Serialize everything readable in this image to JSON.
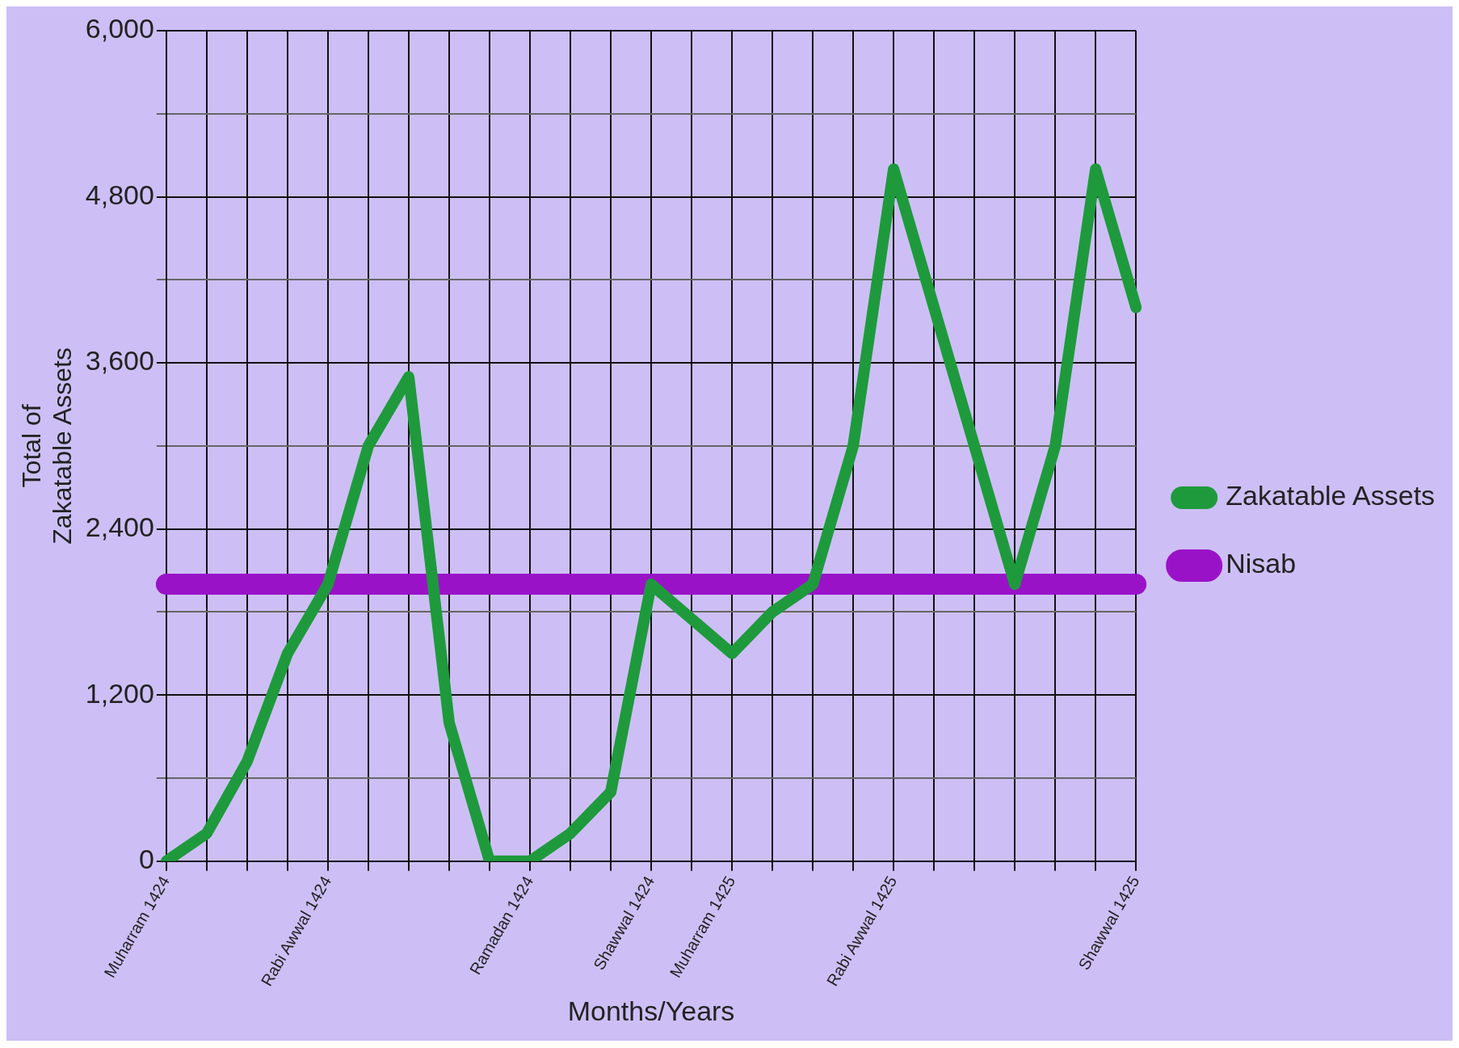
{
  "chart_data": {
    "type": "line",
    "xlabel": "Months/Years",
    "ylabel": "Total of Zakatable Assets",
    "categories": [
      "Muharram 1424",
      null,
      null,
      null,
      "Rabi Awwal 1424",
      null,
      null,
      null,
      null,
      "Ramadan 1424",
      null,
      null,
      "Shawwal 1424",
      null,
      "Muharram 1425",
      null,
      null,
      null,
      "Rabi Awwal 1425",
      null,
      null,
      null,
      null,
      null,
      "Shawwal 1425"
    ],
    "series": [
      {
        "name": "Zakatable Assets",
        "color": "#1e9a3c",
        "values": [
          0,
          200,
          720,
          1500,
          2000,
          3000,
          3500,
          1000,
          0,
          0,
          200,
          500,
          2000,
          1750,
          1500,
          1800,
          2000,
          3000,
          5000,
          4000,
          3000,
          2000,
          3000,
          5000,
          4000
        ]
      },
      {
        "name": "Nisab",
        "color": "#9a12c8",
        "values": [
          2000,
          2000,
          2000,
          2000,
          2000,
          2000,
          2000,
          2000,
          2000,
          2000,
          2000,
          2000,
          2000,
          2000,
          2000,
          2000,
          2000,
          2000,
          2000,
          2000,
          2000,
          2000,
          2000,
          2000,
          2000
        ]
      }
    ],
    "ylim": [
      0,
      6000
    ],
    "yticks": [
      0,
      {
        "value": 600,
        "label": null
      },
      {
        "value": 1200,
        "label": "1,200"
      },
      {
        "value": 1800,
        "label": null
      },
      {
        "value": 2400,
        "label": "2,400"
      },
      {
        "value": 3000,
        "label": null
      },
      {
        "value": 3600,
        "label": "3,600"
      },
      {
        "value": 4200,
        "label": null
      },
      {
        "value": 4800,
        "label": "4,800"
      },
      {
        "value": 5400,
        "label": null
      },
      {
        "value": 6000,
        "label": "6,000"
      }
    ],
    "grid": true,
    "legend": "right",
    "marker": "none",
    "line_style": "solid"
  }
}
